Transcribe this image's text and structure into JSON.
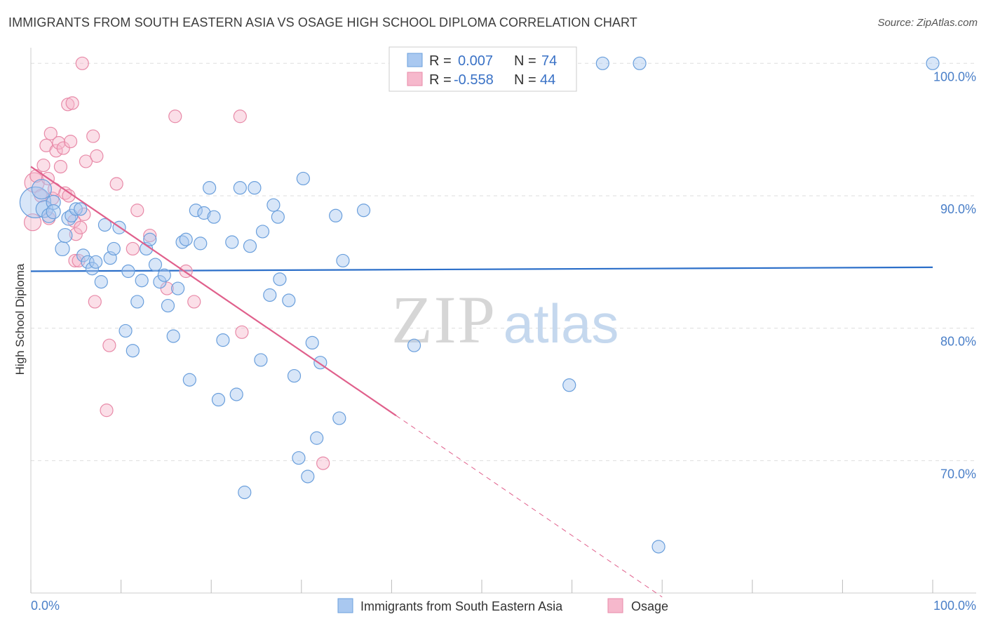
{
  "header": {
    "title": "IMMIGRANTS FROM SOUTH EASTERN ASIA VS OSAGE HIGH SCHOOL DIPLOMA CORRELATION CHART",
    "source": "Source: ZipAtlas.com"
  },
  "watermark": {
    "zip": "ZIP",
    "atlas": "atlas"
  },
  "legend": {
    "rows": [
      {
        "r_label": "R =",
        "r_value": "0.007",
        "n_label": "N =",
        "n_value": "74"
      },
      {
        "r_label": "R =",
        "r_value": "-0.558",
        "n_label": "N =",
        "n_value": "44"
      }
    ]
  },
  "bottom_legend": {
    "items": [
      "Immigrants from South Eastern Asia",
      "Osage"
    ]
  },
  "colors": {
    "blue_fill": "#a9c8f0",
    "blue_stroke": "#6a9fdc",
    "blue_line": "#2c6fc9",
    "pink_fill": "#f6b8cc",
    "pink_stroke": "#e88aa8",
    "pink_line": "#e0608c",
    "tick_text": "#4a7fc8",
    "grid": "#dddddd"
  },
  "chart_data": {
    "type": "scatter",
    "title": "IMMIGRANTS FROM SOUTH EASTERN ASIA VS OSAGE HIGH SCHOOL DIPLOMA CORRELATION CHART",
    "xlabel": "",
    "ylabel": "High School Diploma",
    "xlim": [
      0,
      100
    ],
    "ylim": [
      60,
      101.5
    ],
    "x_tick_labels": [
      "0.0%",
      "100.0%"
    ],
    "y_ticks": [
      70,
      80,
      90,
      100
    ],
    "y_tick_labels": [
      "70.0%",
      "80.0%",
      "90.0%",
      "100.0%"
    ],
    "grid": true,
    "legend_position": "top-center",
    "series": [
      {
        "name": "Immigrants from South Eastern Asia",
        "r": 0.007,
        "n": 74,
        "trend": {
          "x": [
            0,
            100
          ],
          "y": [
            84.3,
            84.6
          ]
        },
        "points": [
          [
            0.5,
            89.5,
            22
          ],
          [
            1.2,
            90.5,
            14
          ],
          [
            1.5,
            89.0,
            12
          ],
          [
            2.0,
            88.5,
            10
          ],
          [
            2.5,
            89.5,
            10
          ],
          [
            2.5,
            88.8,
            10
          ],
          [
            3.5,
            86.0,
            10
          ],
          [
            3.8,
            87.0,
            10
          ],
          [
            4.2,
            88.3,
            10
          ],
          [
            4.5,
            88.5,
            9
          ],
          [
            5.0,
            89.0,
            9
          ],
          [
            5.5,
            89.0,
            9
          ],
          [
            5.8,
            85.5,
            9
          ],
          [
            6.3,
            85.0,
            9
          ],
          [
            6.8,
            84.5,
            9
          ],
          [
            7.2,
            85.0,
            9
          ],
          [
            7.8,
            83.5,
            9
          ],
          [
            8.2,
            87.8,
            9
          ],
          [
            8.8,
            85.3,
            9
          ],
          [
            9.2,
            86.0,
            9
          ],
          [
            9.8,
            87.6,
            9
          ],
          [
            10.5,
            79.8,
            9
          ],
          [
            10.8,
            84.3,
            9
          ],
          [
            11.3,
            78.3,
            9
          ],
          [
            11.8,
            82.0,
            9
          ],
          [
            12.3,
            83.6,
            9
          ],
          [
            12.8,
            86.0,
            9
          ],
          [
            13.2,
            86.7,
            9
          ],
          [
            13.8,
            84.8,
            9
          ],
          [
            14.3,
            83.5,
            9
          ],
          [
            14.8,
            84.0,
            9
          ],
          [
            15.2,
            81.7,
            9
          ],
          [
            15.8,
            79.4,
            9
          ],
          [
            16.3,
            83.0,
            9
          ],
          [
            16.8,
            86.5,
            9
          ],
          [
            17.2,
            86.7,
            9
          ],
          [
            17.6,
            76.1,
            9
          ],
          [
            18.3,
            88.9,
            9
          ],
          [
            18.8,
            86.4,
            9
          ],
          [
            19.2,
            88.7,
            9
          ],
          [
            19.8,
            90.6,
            9
          ],
          [
            20.3,
            88.4,
            9
          ],
          [
            20.8,
            74.6,
            9
          ],
          [
            21.3,
            79.1,
            9
          ],
          [
            22.3,
            86.5,
            9
          ],
          [
            22.8,
            75.0,
            9
          ],
          [
            23.2,
            90.6,
            9
          ],
          [
            23.7,
            67.6,
            9
          ],
          [
            24.3,
            86.2,
            9
          ],
          [
            24.8,
            90.6,
            9
          ],
          [
            25.5,
            77.6,
            9
          ],
          [
            25.7,
            87.3,
            9
          ],
          [
            26.5,
            82.5,
            9
          ],
          [
            26.9,
            89.3,
            9
          ],
          [
            27.4,
            88.4,
            9
          ],
          [
            27.6,
            83.7,
            9
          ],
          [
            28.6,
            82.1,
            9
          ],
          [
            29.2,
            76.4,
            9
          ],
          [
            29.7,
            70.2,
            9
          ],
          [
            30.2,
            91.3,
            9
          ],
          [
            30.7,
            68.8,
            9
          ],
          [
            31.2,
            78.9,
            9
          ],
          [
            31.7,
            71.7,
            9
          ],
          [
            32.1,
            77.4,
            9
          ],
          [
            33.8,
            88.5,
            9
          ],
          [
            34.2,
            73.2,
            9
          ],
          [
            34.6,
            85.1,
            9
          ],
          [
            36.9,
            88.9,
            9
          ],
          [
            42.5,
            78.7,
            9
          ],
          [
            43.5,
            100.0,
            9
          ],
          [
            59.7,
            75.7,
            9
          ],
          [
            63.4,
            100.0,
            9
          ],
          [
            67.5,
            100.0,
            9
          ],
          [
            69.6,
            63.5,
            9
          ],
          [
            100.0,
            100.0,
            9
          ]
        ]
      },
      {
        "name": "Osage",
        "r": -0.558,
        "n": 44,
        "trend": {
          "x": [
            0,
            40.5
          ],
          "y": [
            92.2,
            73.4
          ]
        },
        "trend_dashed": {
          "x": [
            40.5,
            70.0
          ],
          "y": [
            73.4,
            59.7
          ]
        },
        "points": [
          [
            0.2,
            88.0,
            12
          ],
          [
            0.4,
            91.0,
            14
          ],
          [
            0.6,
            91.5,
            9
          ],
          [
            1.1,
            90.0,
            9
          ],
          [
            1.4,
            92.3,
            9
          ],
          [
            1.7,
            93.8,
            9
          ],
          [
            1.9,
            91.3,
            9
          ],
          [
            2.2,
            94.7,
            9
          ],
          [
            2.4,
            89.8,
            9
          ],
          [
            2.6,
            90.5,
            9
          ],
          [
            2.8,
            93.4,
            9
          ],
          [
            3.1,
            94.0,
            9
          ],
          [
            3.3,
            92.2,
            9
          ],
          [
            3.6,
            93.6,
            9
          ],
          [
            3.8,
            90.2,
            9
          ],
          [
            4.1,
            96.9,
            9
          ],
          [
            4.2,
            90.0,
            9
          ],
          [
            4.4,
            94.1,
            9
          ],
          [
            4.6,
            97.0,
            9
          ],
          [
            4.8,
            88.1,
            9
          ],
          [
            4.9,
            85.1,
            9
          ],
          [
            5.0,
            87.1,
            9
          ],
          [
            5.3,
            85.1,
            9
          ],
          [
            5.7,
            100.0,
            9
          ],
          [
            5.9,
            88.6,
            9
          ],
          [
            6.1,
            92.6,
            9
          ],
          [
            6.9,
            94.5,
            9
          ],
          [
            7.1,
            82.0,
            9
          ],
          [
            7.3,
            93.0,
            9
          ],
          [
            8.4,
            73.8,
            9
          ],
          [
            8.7,
            78.7,
            9
          ],
          [
            9.5,
            90.9,
            9
          ],
          [
            11.3,
            86.0,
            9
          ],
          [
            11.8,
            88.9,
            9
          ],
          [
            13.2,
            87.0,
            9
          ],
          [
            15.1,
            83.0,
            9
          ],
          [
            16.0,
            96.0,
            9
          ],
          [
            17.2,
            84.3,
            9
          ],
          [
            18.1,
            82.0,
            9
          ],
          [
            23.2,
            96.0,
            9
          ],
          [
            23.4,
            79.7,
            9
          ],
          [
            32.4,
            69.8,
            9
          ],
          [
            5.5,
            87.6,
            9
          ],
          [
            2.0,
            88.3,
            9
          ]
        ]
      }
    ]
  }
}
